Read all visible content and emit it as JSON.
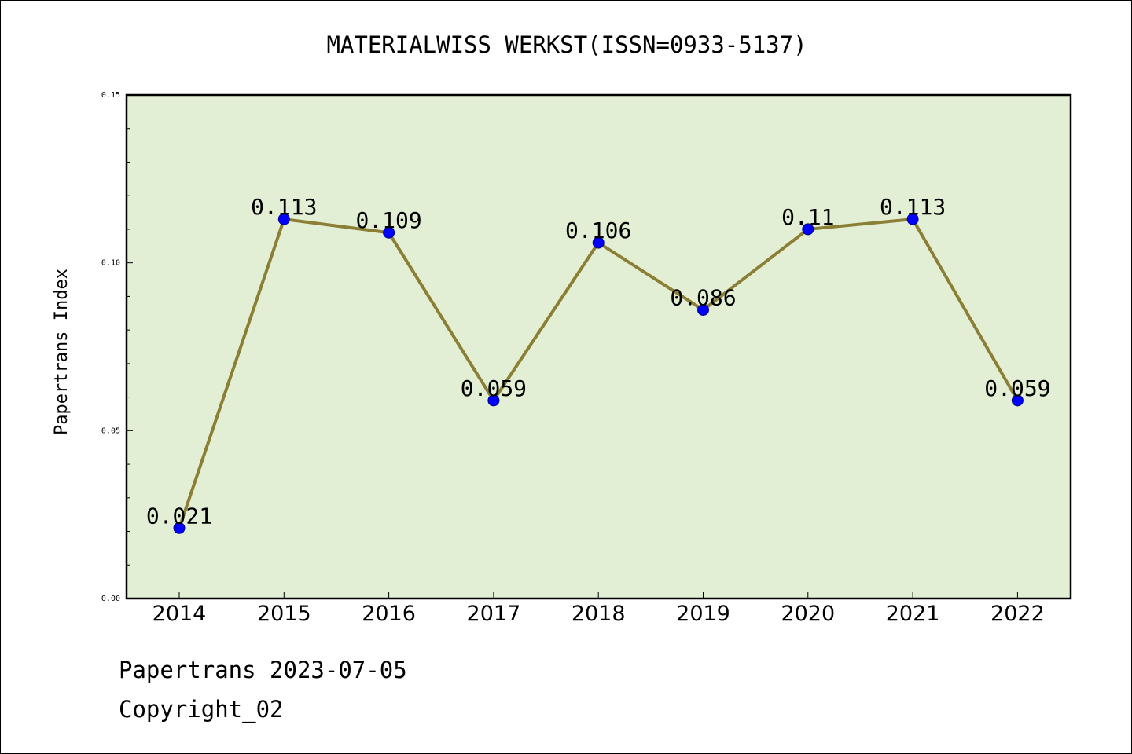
{
  "chart_data": {
    "type": "line",
    "title": "MATERIALWISS WERKST(ISSN=0933-5137)",
    "xlabel": "",
    "ylabel": "Papertrans Index",
    "categories": [
      "2014",
      "2015",
      "2016",
      "2017",
      "2018",
      "2019",
      "2020",
      "2021",
      "2022"
    ],
    "values": [
      0.021,
      0.113,
      0.109,
      0.059,
      0.106,
      0.086,
      0.11,
      0.113,
      0.059
    ],
    "data_labels": [
      "0.021",
      "0.113",
      "0.109",
      "0.059",
      "0.106",
      "0.086",
      "0.11",
      "0.113",
      "0.059"
    ],
    "ylim": [
      0,
      0.15
    ],
    "yticks": [
      "0.00",
      "0.05",
      "0.10",
      "0.15"
    ],
    "grid": false,
    "colors": {
      "plot_background": "#e2efd4",
      "line": "#8b7e35",
      "marker": "#0000ff",
      "marker_edge": "#00008b"
    }
  },
  "footer": {
    "line1": "Papertrans 2023-07-05",
    "line2": "Copyright_02"
  }
}
